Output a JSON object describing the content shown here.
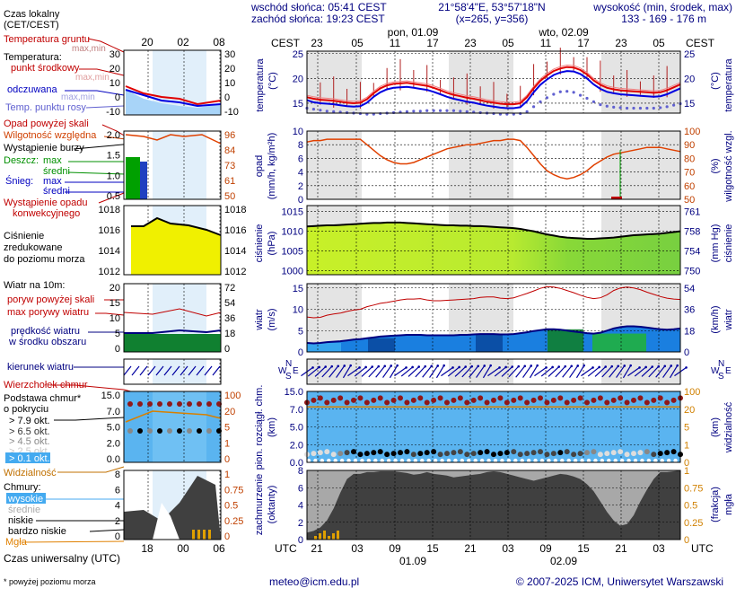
{
  "header": {
    "sunrise": "wschód słońca: 05:41 CEST",
    "sunset": "zachód słońca: 19:23 CEST",
    "coords": "21°58'4\"E, 53°57'18\"N",
    "grid": "(x=265, y=356)",
    "height_title": "wysokość (min, środek, max)",
    "height_values": "133 - 169 - 176 m"
  },
  "legend": {
    "local_time": "Czas lokalny",
    "local_time_zone": "(CET/CEST)",
    "local_hours": [
      "20",
      "02",
      "08"
    ],
    "temp_ground": "Temperatura gruntu",
    "max_min": "max,min",
    "temperature": "Temperatura:",
    "center_point": "punkt środkowy",
    "max_min_2": "max,min",
    "averaged": "odczuwana",
    "max_min_3": "max,min",
    "dew_point": "Temp. punktu rosy",
    "precip_above": "Opad powyżej skali",
    "humidity": "Wilgotność względna",
    "storm": "Wystąpienie burzy",
    "rain": "Deszcz:",
    "rain_max": "max",
    "rain_mid": "średni",
    "snow": "Śnieg:",
    "snow_max": "max",
    "snow_mid": "średni",
    "conv_precip_1": "Wystąpienie opadu",
    "conv_precip_2": "konwekcyjnego",
    "pressure_1": "Ciśnienie",
    "pressure_2": "zredukowane",
    "pressure_3": "do poziomu morza",
    "wind_label": "Wiatr na 10m:",
    "gust_above": "poryw powyżej skali",
    "gust_max": "max porywy wiatru",
    "wind_speed_1": "prędkość wiatru",
    "wind_speed_2": "w środku obszaru",
    "wind_dir": "kierunek wiatru",
    "cb": "Wierzchołek chmur",
    "cloud_base_1": "Podstawa chmur*",
    "cloud_base_2": "o pokryciu",
    "octa_79": "> 7.9 okt.",
    "octa_65": "> 6.5 okt.",
    "octa_45": "> 4.5 okt.",
    "octa_25": "> 2.5 okt.",
    "octa_01": "> 0.1 okt.",
    "visibility": "Widzialność",
    "clouds": "Chmury:",
    "cl_high": "wysokie",
    "cl_mid": "średnie",
    "cl_low": "niskie",
    "cl_vlow": "bardzo niskie",
    "fog": "Mgła",
    "utc_title": "Czas uniwersalny (UTC)",
    "utc_hours": [
      "18",
      "00",
      "06"
    ],
    "footnote": "* powyżej poziomu morza"
  },
  "top_axis": {
    "tz_left": "CEST",
    "tz_right": "CEST",
    "day1": "pon, 01.09",
    "day2": "wto, 02.09",
    "hours": [
      "23",
      "05",
      "11",
      "17",
      "23",
      "05",
      "11",
      "17",
      "23",
      "05"
    ]
  },
  "bottom_axis": {
    "tz_left": "UTC",
    "tz_right": "UTC",
    "hours": [
      "21",
      "03",
      "09",
      "15",
      "21",
      "03",
      "09",
      "15",
      "21",
      "03"
    ],
    "day1": "01.09",
    "day2": "02.09"
  },
  "panels": {
    "temp": {
      "label": "temperatura",
      "unit": "(°C)",
      "ticks": [
        "25",
        "20",
        "15"
      ]
    },
    "precip": {
      "label1": "opad",
      "label2": "(mm/h, kg/m²h)",
      "ticks_left": [
        "10",
        "8",
        "6",
        "4",
        "2",
        "0"
      ],
      "right_label": "wilgotność wzgl.",
      "right_unit": "(%)",
      "ticks_right": [
        "100",
        "90",
        "80",
        "70",
        "60",
        "50"
      ]
    },
    "pressure": {
      "label": "ciśnienie",
      "unit": "(hPa)",
      "ticks_left": [
        "1015",
        "1010",
        "1005",
        "1000"
      ],
      "right_unit": "(mm Hg)",
      "ticks_right": [
        "761",
        "758",
        "754",
        "750"
      ]
    },
    "wind": {
      "label": "wiatr",
      "unit": "(m/s)",
      "ticks_left": [
        "15",
        "10",
        "5",
        "0"
      ],
      "right_unit": "(km/h)",
      "right_label": "wiatr",
      "ticks_right": [
        "54",
        "36",
        "18",
        "0"
      ]
    },
    "winddir": {
      "letters_left": [
        "N",
        "W",
        "S",
        "E"
      ],
      "letters_right": [
        "N",
        "W",
        "S",
        "E"
      ]
    },
    "cloud": {
      "label1": "pion. rozciągł. chm.",
      "label2": "(km)",
      "ticks_left": [
        "15.0",
        "7.0",
        "5.0",
        "2.0",
        "0.0"
      ],
      "right_label": "widzialność",
      "right_unit": "(km)",
      "ticks_right": [
        "100",
        "20",
        "5",
        "1",
        "0"
      ]
    },
    "cover": {
      "label1": "zachmurzenie",
      "label2": "(oktanty)",
      "ticks_left": [
        "8",
        "6",
        "4",
        "2",
        "0"
      ],
      "right_label": "mgła",
      "right_unit": "(frakcja)",
      "ticks_right": [
        "1",
        "0.75",
        "0.5",
        "0.25",
        "0"
      ]
    }
  },
  "mini_ticks": {
    "temp_left": [
      "30",
      "20",
      "10",
      "0",
      "-10"
    ],
    "temp_right": [
      "30",
      "20",
      "10",
      "0",
      "-10"
    ],
    "precip_left": [
      "2.0",
      "1.5",
      "1.0",
      "0.5"
    ],
    "precip_right": [
      "96",
      "84",
      "73",
      "61",
      "50"
    ],
    "pressure_left": [
      "1018",
      "1016",
      "1014",
      "1012"
    ],
    "pressure_right": [
      "1018",
      "1016",
      "1014",
      "1012"
    ],
    "wind_left": [
      "20",
      "15",
      "10",
      "5",
      "0"
    ],
    "wind_right": [
      "72",
      "54",
      "36",
      "18",
      "0"
    ],
    "cloud_left": [
      "15.0",
      "7.0",
      "5.0",
      "2.0",
      "0.0"
    ],
    "cloud_right": [
      "100",
      "20",
      "5",
      "1",
      "0"
    ],
    "cover_left": [
      "8",
      "6",
      "4",
      "2",
      "0"
    ],
    "cover_right": [
      "1",
      "0.75",
      "0.5",
      "0.25",
      "0"
    ]
  },
  "footer": {
    "email": "meteo@icm.edu.pl",
    "copyright": "© 2007-2025 ICM, Uniwersytet Warszawski"
  },
  "chart_data": {
    "type": "line",
    "hours_utc": [
      21,
      22,
      23,
      0,
      1,
      2,
      3,
      4,
      5,
      6,
      7,
      8,
      9,
      10,
      11,
      12,
      13,
      14,
      15,
      16,
      17,
      18,
      19,
      20,
      21,
      22,
      23,
      0,
      1,
      2,
      3,
      4,
      5,
      6,
      7,
      8,
      9,
      10,
      11,
      12,
      13,
      14,
      15,
      16,
      17,
      18,
      19,
      20,
      21,
      22,
      23,
      0,
      1,
      2,
      3,
      4,
      5
    ],
    "temperature": [
      16.2,
      15.9,
      15.7,
      15.6,
      15.5,
      15.3,
      15.1,
      15.0,
      15.1,
      15.8,
      17.0,
      18.0,
      18.6,
      18.9,
      19.0,
      19.1,
      18.9,
      18.7,
      18.5,
      18.1,
      17.6,
      17.1,
      16.7,
      16.4,
      16.1,
      15.9,
      15.6,
      15.3,
      15.1,
      14.9,
      14.8,
      14.8,
      15.0,
      16.2,
      18.0,
      19.5,
      20.6,
      21.5,
      22.0,
      22.3,
      22.2,
      21.7,
      20.8,
      19.6,
      18.7,
      18.1,
      17.8,
      17.6,
      17.5,
      17.4,
      17.3,
      17.2,
      17.1,
      17.2,
      17.6,
      18.2,
      18.8
    ],
    "temperature_felt": [
      15.6,
      15.2,
      15.0,
      14.9,
      14.8,
      14.6,
      14.4,
      14.3,
      14.4,
      15.1,
      16.3,
      17.2,
      17.8,
      18.1,
      18.2,
      18.3,
      18.1,
      17.9,
      17.7,
      17.3,
      16.8,
      16.3,
      15.9,
      15.6,
      15.3,
      15.1,
      14.8,
      14.5,
      14.3,
      14.1,
      14.0,
      14.0,
      14.2,
      15.4,
      17.2,
      18.7,
      19.8,
      20.7,
      21.2,
      21.5,
      21.4,
      20.9,
      20.0,
      18.8,
      17.9,
      17.3,
      17.0,
      16.8,
      16.7,
      16.6,
      16.5,
      16.4,
      16.3,
      16.4,
      16.8,
      17.4,
      18.0
    ],
    "dew_point": [
      14.0,
      13.8,
      13.6,
      13.4,
      13.3,
      13.2,
      13.1,
      13.0,
      12.9,
      12.8,
      12.8,
      12.9,
      13.0,
      13.1,
      13.2,
      13.3,
      13.4,
      13.4,
      13.5,
      13.5,
      13.5,
      13.5,
      13.5,
      13.4,
      13.3,
      13.2,
      13.1,
      13.0,
      12.9,
      12.8,
      12.8,
      12.8,
      12.9,
      13.3,
      14.3,
      15.3,
      16.1,
      16.8,
      17.3,
      17.4,
      17.2,
      16.6,
      16.0,
      15.3,
      14.7,
      14.4,
      14.2,
      14.1,
      14.0,
      14.0,
      14.0,
      14.0,
      14.0,
      14.1,
      14.3,
      14.6,
      14.9
    ],
    "humidity": [
      92,
      93,
      93,
      94,
      94,
      94,
      94,
      94,
      94,
      90,
      86,
      82,
      79,
      77,
      76,
      76,
      77,
      79,
      81,
      83,
      85,
      87,
      88,
      89,
      90,
      90,
      91,
      92,
      93,
      93,
      94,
      94,
      93,
      88,
      82,
      76,
      71,
      68,
      66,
      65,
      66,
      68,
      71,
      75,
      78,
      81,
      83,
      84,
      85,
      86,
      87,
      88,
      88,
      88,
      87,
      86,
      85
    ],
    "pressure": [
      1011.2,
      1011.3,
      1011.4,
      1011.5,
      1011.5,
      1011.6,
      1011.7,
      1011.8,
      1011.9,
      1012.0,
      1012.1,
      1012.1,
      1012.2,
      1012.2,
      1012.2,
      1012.1,
      1012.0,
      1011.9,
      1011.8,
      1011.7,
      1011.6,
      1011.5,
      1011.5,
      1011.4,
      1011.4,
      1011.3,
      1011.3,
      1011.2,
      1011.1,
      1011.0,
      1010.9,
      1010.8,
      1010.6,
      1010.3,
      1010.0,
      1009.6,
      1009.2,
      1008.9,
      1008.6,
      1008.4,
      1008.3,
      1008.2,
      1008.1,
      1008.1,
      1008.2,
      1008.3,
      1008.4,
      1008.6,
      1008.8,
      1009.0,
      1009.1,
      1009.2,
      1009.3,
      1009.4,
      1009.6,
      1009.8,
      1010.0
    ],
    "wind_speed": [
      2.1,
      2.0,
      2.1,
      2.3,
      2.4,
      2.5,
      2.7,
      2.9,
      3.0,
      3.2,
      3.4,
      3.6,
      3.7,
      3.8,
      3.9,
      4.0,
      4.0,
      4.0,
      3.9,
      3.9,
      3.9,
      3.9,
      3.9,
      4.0,
      4.0,
      4.1,
      4.2,
      4.2,
      4.2,
      4.1,
      4.1,
      4.2,
      4.4,
      4.6,
      4.9,
      5.1,
      5.3,
      5.3,
      5.2,
      5.0,
      4.8,
      4.6,
      4.4,
      4.3,
      4.5,
      5.0,
      5.5,
      5.8,
      6.0,
      6.0,
      5.9,
      5.7,
      5.5,
      5.3,
      5.2,
      5.3,
      5.5
    ],
    "gust": [
      8.2,
      8.0,
      8.1,
      8.6,
      8.9,
      9.1,
      9.5,
      9.8,
      10.0,
      10.6,
      11.0,
      11.4,
      11.6,
      11.9,
      12.2,
      12.4,
      12.4,
      12.5,
      12.2,
      12.0,
      12.0,
      12.1,
      12.2,
      12.3,
      12.4,
      12.5,
      12.8,
      12.9,
      12.9,
      12.6,
      12.5,
      12.7,
      13.2,
      13.7,
      14.3,
      14.9,
      15.3,
      15.2,
      14.9,
      14.4,
      13.9,
      13.3,
      12.8,
      12.5,
      12.7,
      13.4,
      14.4,
      15.0,
      15.2,
      15.0,
      14.6,
      14.0,
      13.5,
      13.0,
      12.6,
      12.4,
      12.3
    ],
    "cloud_cover": [
      0.8,
      1.0,
      1.4,
      2.2,
      3.6,
      5.4,
      7.0,
      7.6,
      7.6,
      7.8,
      7.8,
      7.9,
      7.9,
      7.9,
      7.8,
      7.7,
      7.5,
      7.6,
      7.8,
      7.6,
      7.5,
      7.4,
      7.2,
      7.3,
      7.4,
      7.5,
      7.6,
      7.8,
      7.9,
      7.8,
      7.6,
      7.4,
      7.2,
      7.0,
      6.8,
      7.0,
      7.2,
      7.4,
      7.6,
      7.5,
      7.3,
      7.0,
      6.4,
      5.6,
      4.4,
      3.2,
      2.2,
      1.6,
      1.8,
      2.8,
      4.4,
      5.8,
      7.0,
      7.8,
      7.8,
      7.9,
      8.0
    ],
    "visibility_km": [
      15,
      17,
      18,
      18,
      17,
      16,
      16,
      17,
      18,
      19,
      20,
      20,
      20,
      20,
      20,
      19,
      18,
      18,
      17,
      17,
      16,
      16,
      15,
      15,
      16,
      17,
      17,
      18,
      18,
      19,
      19,
      20,
      20,
      20,
      20,
      20,
      20,
      20,
      20,
      20,
      20,
      19,
      18,
      18,
      17,
      16,
      16,
      15,
      15,
      16,
      17,
      18,
      18,
      19,
      19,
      20,
      20
    ]
  }
}
